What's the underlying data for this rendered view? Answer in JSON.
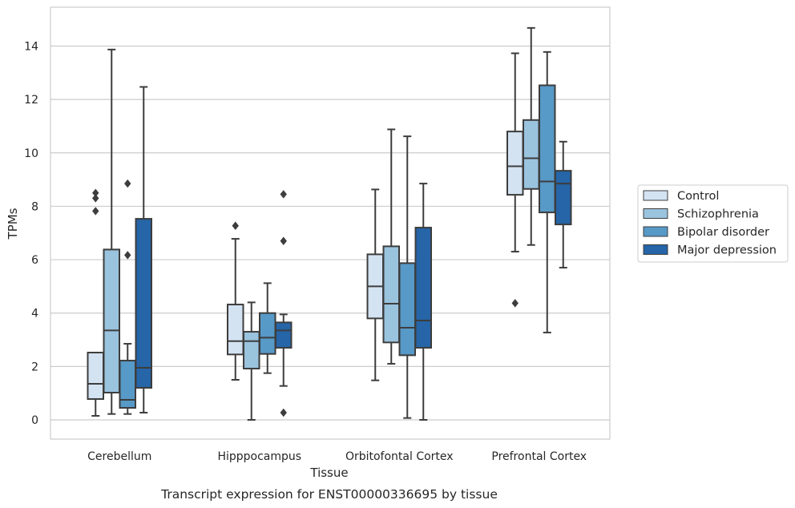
{
  "chart_data": {
    "type": "box",
    "title": "",
    "caption": "Transcript expression for ENST00000336695 by tissue",
    "xlabel": "Tissue",
    "ylabel": "TPMs",
    "ylim": [
      -0.7,
      15.5
    ],
    "yticks": [
      "0",
      "2",
      "4",
      "6",
      "8",
      "10",
      "12",
      "14"
    ],
    "grid": "horizontal",
    "legend_position": "right",
    "categories": [
      "Cerebellum",
      "Hipppocampus",
      "Orbitofontal Cortex",
      "Prefrontal Cortex"
    ],
    "series": [
      {
        "name": "Control",
        "color": "#d4e3f2",
        "boxes": [
          {
            "whislo": 0.15,
            "q1": 0.78,
            "med": 1.35,
            "q3": 2.52,
            "whishi": 2.52,
            "fliers": []
          },
          {
            "whislo": 1.5,
            "q1": 2.45,
            "med": 2.95,
            "q3": 4.32,
            "whishi": 6.78,
            "fliers": [
              7.27
            ]
          },
          {
            "whislo": 1.48,
            "q1": 3.8,
            "med": 5.0,
            "q3": 6.2,
            "whishi": 8.63,
            "fliers": []
          },
          {
            "whislo": 6.3,
            "q1": 8.43,
            "med": 9.5,
            "q3": 10.8,
            "whishi": 13.73,
            "fliers": [
              4.37
            ]
          }
        ]
      },
      {
        "name": "Schizophrenia",
        "color": "#9ac3de",
        "boxes": [
          {
            "whislo": 0.22,
            "q1": 1.02,
            "med": 3.35,
            "q3": 6.38,
            "whishi": 13.87,
            "fliers": []
          },
          {
            "whislo": 0.0,
            "q1": 1.92,
            "med": 2.95,
            "q3": 3.3,
            "whishi": 4.4,
            "fliers": []
          },
          {
            "whislo": 2.1,
            "q1": 2.9,
            "med": 4.35,
            "q3": 6.5,
            "whishi": 10.88,
            "fliers": []
          },
          {
            "whislo": 6.55,
            "q1": 8.65,
            "med": 9.8,
            "q3": 11.23,
            "whishi": 14.68,
            "fliers": []
          }
        ]
      },
      {
        "name": "Bipolar disorder",
        "color": "#5799c7",
        "boxes": [
          {
            "whislo": 0.22,
            "q1": 0.45,
            "med": 0.75,
            "q3": 2.22,
            "whishi": 2.85,
            "fliers": [
              8.85,
              6.17
            ]
          },
          {
            "whislo": 1.75,
            "q1": 2.47,
            "med": 3.08,
            "q3": 4.0,
            "whishi": 5.12,
            "fliers": []
          },
          {
            "whislo": 0.07,
            "q1": 2.42,
            "med": 3.45,
            "q3": 5.87,
            "whishi": 10.62,
            "fliers": []
          },
          {
            "whislo": 3.27,
            "q1": 7.77,
            "med": 8.93,
            "q3": 12.53,
            "whishi": 13.78,
            "fliers": []
          }
        ]
      },
      {
        "name": "Major depression",
        "color": "#2565a8",
        "boxes": [
          {
            "whislo": 0.27,
            "q1": 1.2,
            "med": 1.95,
            "q3": 7.53,
            "whishi": 12.47,
            "fliers": []
          },
          {
            "whislo": 1.27,
            "q1": 2.7,
            "med": 3.35,
            "q3": 3.65,
            "whishi": 3.95,
            "fliers": [
              8.45,
              6.7,
              0.27
            ]
          },
          {
            "whislo": 0.0,
            "q1": 2.7,
            "med": 3.72,
            "q3": 7.2,
            "whishi": 8.85,
            "fliers": []
          },
          {
            "whislo": 5.7,
            "q1": 7.32,
            "med": 8.85,
            "q3": 9.33,
            "whishi": 10.42,
            "fliers": []
          }
        ]
      }
    ],
    "extra_fliers": [
      {
        "category": 0,
        "series": 0,
        "values": [
          8.5,
          8.3,
          7.82
        ]
      }
    ]
  }
}
